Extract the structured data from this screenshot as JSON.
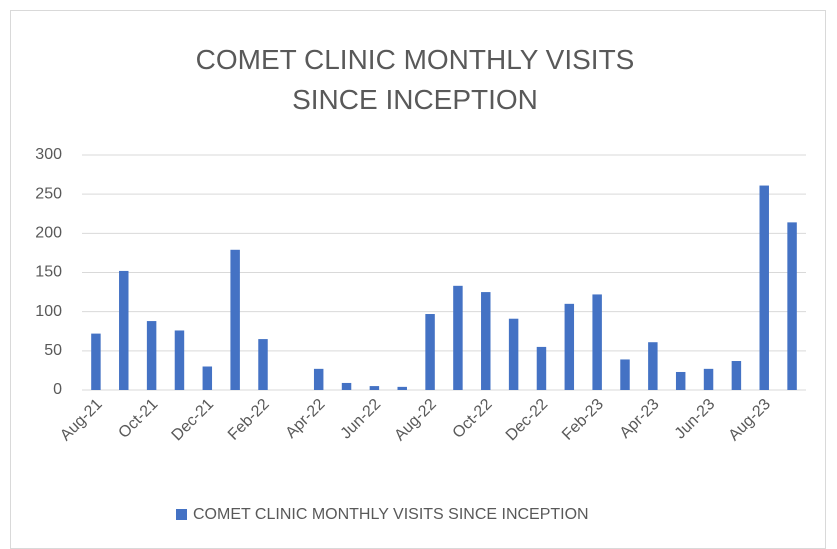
{
  "chart_data": {
    "type": "bar",
    "title": "COMET CLINIC MONTHLY VISITS SINCE INCEPTION",
    "categories": [
      "Aug-21",
      null,
      "Oct-21",
      null,
      "Dec-21",
      null,
      "Feb-22",
      null,
      "Apr-22",
      null,
      "Jun-22",
      null,
      "Aug-22",
      null,
      "Oct-22",
      null,
      "Dec-22",
      null,
      "Feb-23",
      null,
      "Apr-23",
      null,
      "Jun-23",
      null,
      "Aug-23",
      null
    ],
    "series": [
      {
        "name": "COMET CLINIC MONTHLY VISITS SINCE INCEPTION",
        "color": "#4472c4",
        "values": [
          72,
          152,
          88,
          76,
          30,
          179,
          65,
          0,
          27,
          9,
          5,
          4,
          97,
          133,
          125,
          91,
          55,
          110,
          122,
          39,
          61,
          23,
          27,
          37,
          261,
          214
        ]
      }
    ],
    "ylim": [
      0,
      300
    ],
    "yticks": [
      0,
      50,
      100,
      150,
      200,
      250,
      300
    ],
    "grid": true,
    "legend": "bottom"
  }
}
